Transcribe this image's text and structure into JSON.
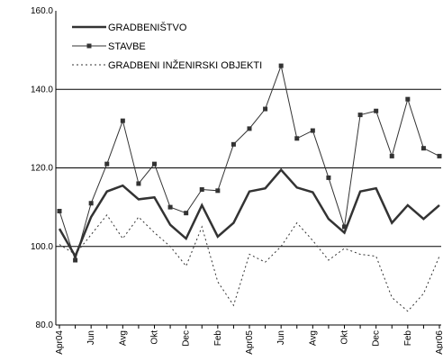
{
  "chart_data": {
    "type": "line",
    "categories": [
      "Apr04",
      null,
      "Jun",
      null,
      "Avg",
      null,
      "Okt",
      null,
      "Dec",
      null,
      "Feb",
      null,
      "Apr05",
      null,
      "Jun",
      null,
      "Avg",
      null,
      "Okt",
      null,
      "Dec",
      null,
      "Feb",
      null,
      "Apr06"
    ],
    "series": [
      {
        "name": "GRADBENIŠTVO",
        "color": "#333333",
        "style": "thick",
        "values": [
          104.5,
          97.5,
          107.5,
          114,
          115.5,
          112,
          112.5,
          105.5,
          102,
          110.5,
          102.5,
          106,
          114,
          114.8,
          119.5,
          115,
          113.8,
          107,
          103.5,
          114,
          114.8,
          106,
          110.5,
          107,
          110.5
        ]
      },
      {
        "name": "STAVBE",
        "color": "#333333",
        "style": "marker",
        "values": [
          109,
          96.5,
          111,
          121,
          132,
          116,
          121,
          110,
          108.5,
          114.5,
          114.2,
          126,
          130,
          135,
          146,
          127.5,
          129.5,
          117.5,
          105,
          133.5,
          134.5,
          123,
          137.5,
          125,
          123
        ]
      },
      {
        "name": "GRADBENI INŽENIRSKI OBJEKTI",
        "color": "#333333",
        "style": "dotted",
        "values": [
          100.5,
          98,
          103,
          108,
          102,
          107.5,
          103.5,
          100,
          95,
          105,
          91,
          85,
          98,
          96,
          100,
          106,
          101.5,
          96.5,
          99.5,
          98,
          97.5,
          87,
          83.5,
          88,
          97.5
        ]
      }
    ],
    "ylim": [
      80,
      160
    ],
    "yticks": [
      {
        "value": 80,
        "label": "80.0"
      },
      {
        "value": 100,
        "label": "100.0"
      },
      {
        "value": 120,
        "label": "120.0"
      },
      {
        "value": 140,
        "label": "140.0"
      },
      {
        "value": 160,
        "label": "160.0"
      }
    ],
    "grid": true
  }
}
